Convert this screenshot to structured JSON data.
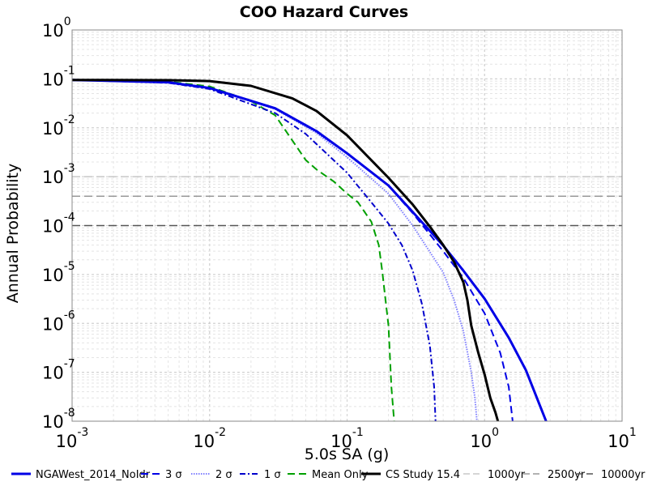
{
  "chart_data": {
    "type": "line",
    "title": "COO Hazard Curves",
    "xlabel": "5.0s SA (g)",
    "ylabel": "Annual Probability",
    "x_scale": "log",
    "y_scale": "log",
    "xlim": [
      0.001,
      10
    ],
    "ylim": [
      1e-08,
      1
    ],
    "grid": true,
    "legend_position": "bottom",
    "x_ticks": [
      {
        "base": "10",
        "exp": "-3",
        "value": 0.001
      },
      {
        "base": "10",
        "exp": "-2",
        "value": 0.01
      },
      {
        "base": "10",
        "exp": "-1",
        "value": 0.1
      },
      {
        "base": "10",
        "exp": "0",
        "value": 1
      },
      {
        "base": "10",
        "exp": "1",
        "value": 10
      }
    ],
    "y_ticks": [
      {
        "base": "10",
        "exp": "0",
        "value": 1
      },
      {
        "base": "10",
        "exp": "-1",
        "value": 0.1
      },
      {
        "base": "10",
        "exp": "-2",
        "value": 0.01
      },
      {
        "base": "10",
        "exp": "-3",
        "value": 0.001
      },
      {
        "base": "10",
        "exp": "-4",
        "value": 0.0001
      },
      {
        "base": "10",
        "exp": "-5",
        "value": 1e-05
      },
      {
        "base": "10",
        "exp": "-6",
        "value": 1e-06
      },
      {
        "base": "10",
        "exp": "-7",
        "value": 1e-07
      },
      {
        "base": "10",
        "exp": "-8",
        "value": 1e-08
      }
    ],
    "series": [
      {
        "name": "NGAWest_2014_NoIdr",
        "color": "#0000e6",
        "style": "solid",
        "x": [
          0.001,
          0.005,
          0.01,
          0.03,
          0.06,
          0.1,
          0.2,
          0.3,
          0.5,
          0.7,
          1.0,
          1.5,
          2.0,
          2.8
        ],
        "y": [
          0.095,
          0.085,
          0.065,
          0.025,
          0.0085,
          0.003,
          0.00066,
          0.00019,
          3.9e-05,
          1.2e-05,
          3.2e-06,
          5.1e-07,
          1.1e-07,
          1e-08
        ]
      },
      {
        "name": "3 σ",
        "color": "#0000e6",
        "style": "dashed",
        "x": [
          0.001,
          0.005,
          0.01,
          0.03,
          0.06,
          0.1,
          0.2,
          0.3,
          0.5,
          0.7,
          1.0,
          1.3,
          1.5,
          1.6
        ],
        "y": [
          0.095,
          0.085,
          0.065,
          0.025,
          0.0085,
          0.003,
          0.00065,
          0.00018,
          3e-05,
          8.5e-06,
          1.6e-06,
          2.5e-07,
          5e-08,
          1e-08
        ]
      },
      {
        "name": "2 σ",
        "color": "#8080ff",
        "style": "dotted",
        "x": [
          0.001,
          0.005,
          0.01,
          0.03,
          0.06,
          0.1,
          0.2,
          0.3,
          0.5,
          0.6,
          0.7,
          0.8,
          0.85,
          0.88
        ],
        "y": [
          0.095,
          0.085,
          0.065,
          0.024,
          0.0078,
          0.0025,
          0.00045,
          0.0001,
          1.1e-05,
          3e-06,
          7e-07,
          1e-07,
          3e-08,
          1e-08
        ]
      },
      {
        "name": "1 σ",
        "color": "#0000cc",
        "style": "dashdot",
        "x": [
          0.001,
          0.005,
          0.01,
          0.03,
          0.05,
          0.1,
          0.15,
          0.2,
          0.25,
          0.3,
          0.35,
          0.4,
          0.43,
          0.44
        ],
        "y": [
          0.095,
          0.083,
          0.062,
          0.02,
          0.0075,
          0.0012,
          0.0003,
          0.00011,
          4e-05,
          1.2e-05,
          2.5e-06,
          3.5e-07,
          5e-08,
          1e-08
        ]
      },
      {
        "name": "Mean Only",
        "color": "#00a000",
        "style": "dashed",
        "x": [
          0.001,
          0.005,
          0.01,
          0.02,
          0.03,
          0.04,
          0.05,
          0.06,
          0.08,
          0.1,
          0.12,
          0.15,
          0.17,
          0.18,
          0.2,
          0.21,
          0.22
        ],
        "y": [
          0.095,
          0.088,
          0.07,
          0.035,
          0.018,
          0.0055,
          0.0022,
          0.0014,
          0.0008,
          0.00045,
          0.0003,
          0.00012,
          4e-05,
          1.2e-05,
          9e-07,
          5e-08,
          1e-08
        ]
      },
      {
        "name": "CS Study 15.4",
        "color": "#000000",
        "style": "solid",
        "x": [
          0.001,
          0.005,
          0.01,
          0.02,
          0.04,
          0.06,
          0.1,
          0.2,
          0.3,
          0.4,
          0.5,
          0.6,
          0.7,
          0.75,
          0.8,
          0.9,
          1.0,
          1.1,
          1.2,
          1.25
        ],
        "y": [
          0.095,
          0.094,
          0.09,
          0.072,
          0.04,
          0.022,
          0.007,
          0.00095,
          0.00027,
          9.5e-05,
          4e-05,
          1.8e-05,
          7e-06,
          3e-06,
          9e-07,
          2.5e-07,
          9e-08,
          3e-08,
          1.5e-08,
          1e-08
        ]
      },
      {
        "name": "1000yr",
        "color": "#c8c8c8",
        "style": "dashed",
        "x": [
          0.001,
          10
        ],
        "y": [
          0.001,
          0.001
        ]
      },
      {
        "name": "2500yr",
        "color": "#999999",
        "style": "dashed",
        "x": [
          0.001,
          10
        ],
        "y": [
          0.0004,
          0.0004
        ]
      },
      {
        "name": "10000yr",
        "color": "#555555",
        "style": "dashed",
        "x": [
          0.001,
          10
        ],
        "y": [
          0.0001,
          0.0001
        ]
      }
    ]
  }
}
